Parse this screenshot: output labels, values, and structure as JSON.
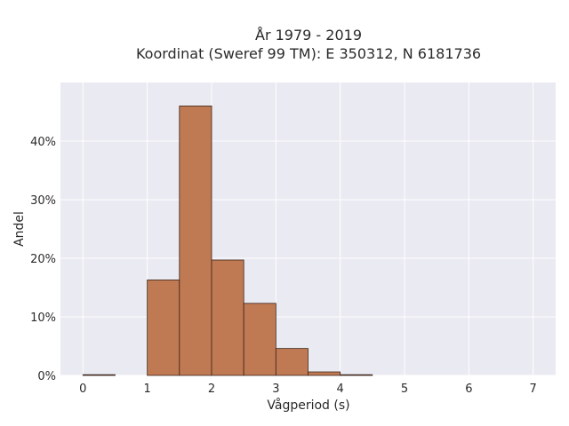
{
  "chart_data": {
    "type": "bar",
    "title_line1": "År 1979 - 2019",
    "title_line2": "Koordinat (Sweref 99 TM): E 350312, N 6181736",
    "xlabel": "Vågperiod (s)",
    "ylabel": "Andel",
    "xlim": [
      -0.35,
      7.35
    ],
    "ylim": [
      0,
      0.5
    ],
    "x_ticks": [
      0,
      1,
      2,
      3,
      4,
      5,
      6,
      7
    ],
    "y_ticks": [
      0,
      0.1,
      0.2,
      0.3,
      0.4
    ],
    "y_tick_labels": [
      "0%",
      "10%",
      "20%",
      "30%",
      "40%"
    ],
    "grid": true,
    "bin_width": 0.5,
    "bins": [
      {
        "x0": 0.0,
        "x1": 0.5,
        "value": 0.001
      },
      {
        "x0": 0.5,
        "x1": 1.0,
        "value": 0.0
      },
      {
        "x0": 1.0,
        "x1": 1.5,
        "value": 0.163
      },
      {
        "x0": 1.5,
        "x1": 2.0,
        "value": 0.46
      },
      {
        "x0": 2.0,
        "x1": 2.5,
        "value": 0.197
      },
      {
        "x0": 2.5,
        "x1": 3.0,
        "value": 0.123
      },
      {
        "x0": 3.0,
        "x1": 3.5,
        "value": 0.046
      },
      {
        "x0": 3.5,
        "x1": 4.0,
        "value": 0.006
      },
      {
        "x0": 4.0,
        "x1": 4.5,
        "value": 0.001
      }
    ],
    "colors": {
      "bar_fill": "#c07a53",
      "bar_edge": "#3a2418",
      "plot_bg": "#eaeaf2",
      "grid": "#ffffff"
    }
  }
}
